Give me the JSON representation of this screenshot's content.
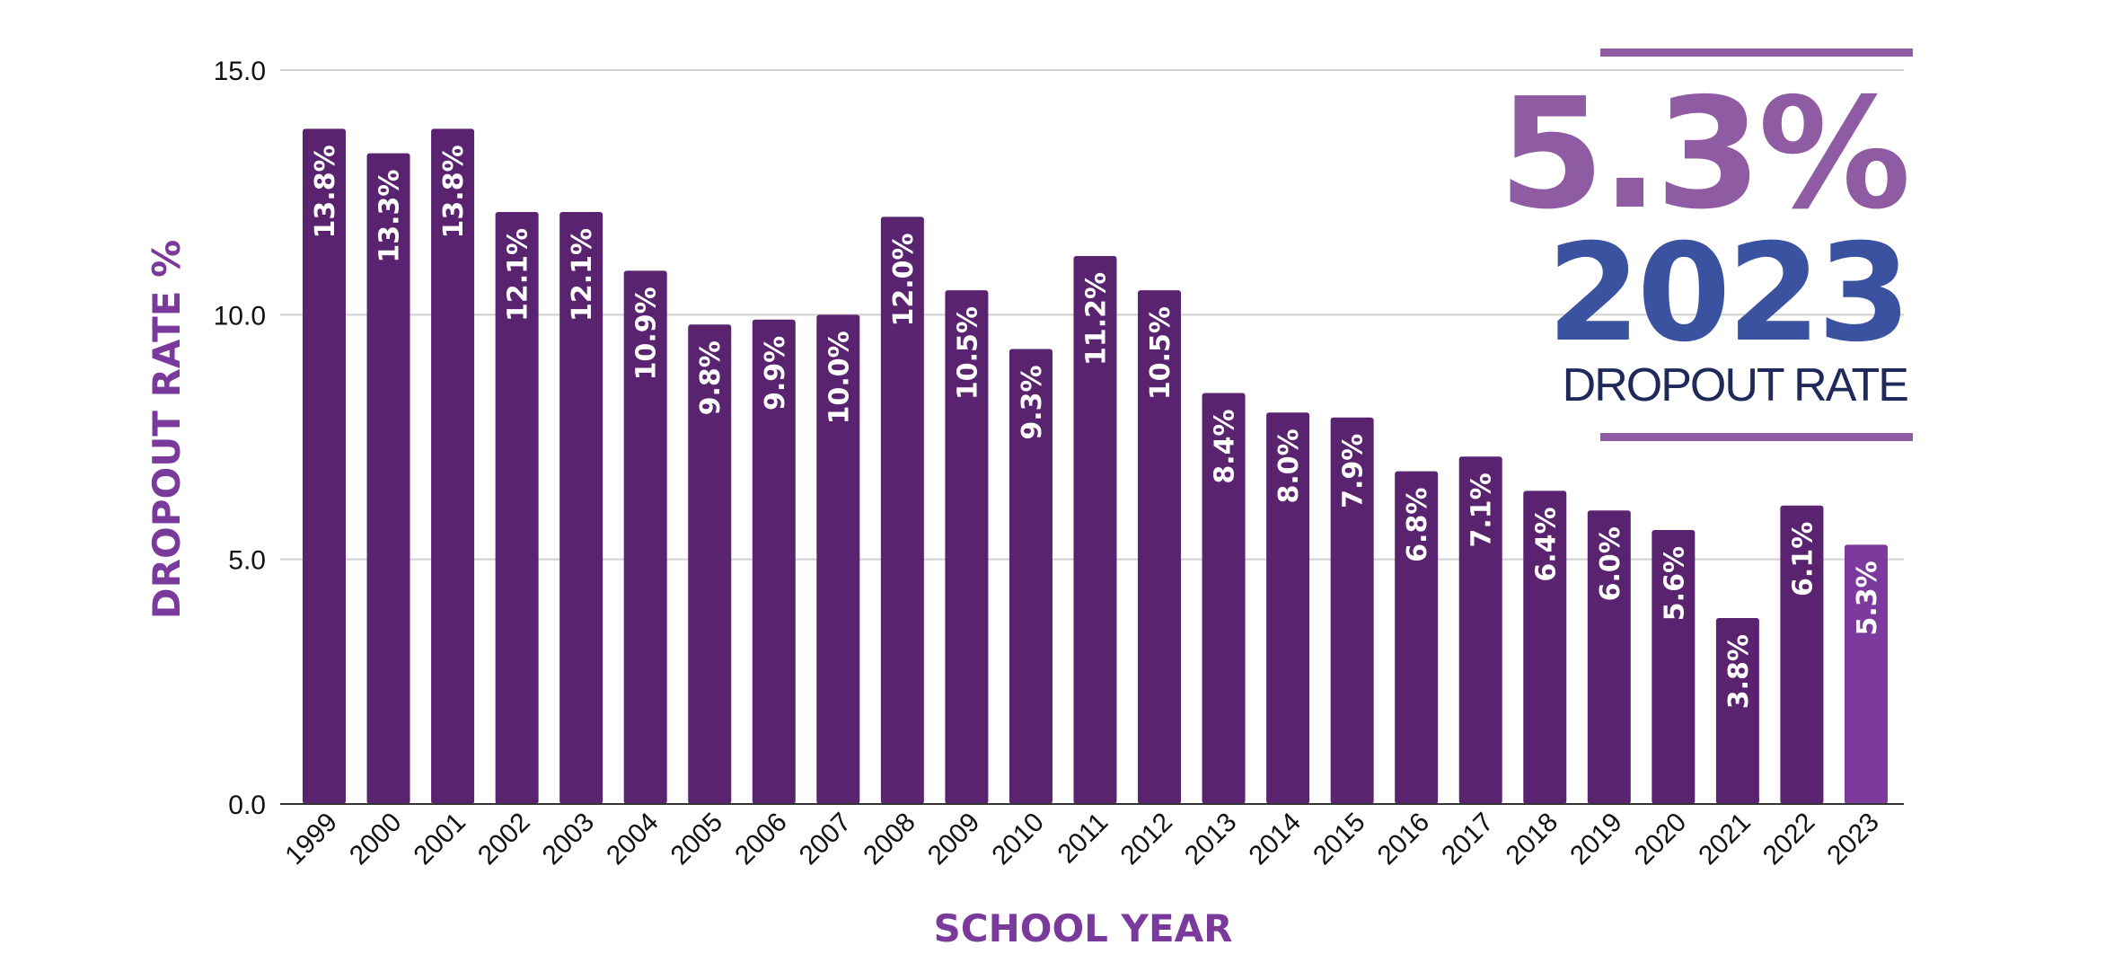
{
  "colors": {
    "bar": "#5a2370",
    "bar_highlight": "#7b3a9c",
    "axis_title": "#7a3a9c",
    "grid": "#cfcfcf",
    "axis": "#333333",
    "callout_value": "#8f5ba3",
    "callout_year": "#3a52a0",
    "callout_label": "#1f2a5a",
    "callout_rule": "#8f5ba3"
  },
  "callout": {
    "value": "5.3%",
    "year": "2023",
    "label": "DROPOUT RATE"
  },
  "chart_data": {
    "type": "bar",
    "title": "",
    "xlabel": "SCHOOL YEAR",
    "ylabel": "DROPOUT RATE %",
    "ylim": [
      0,
      15
    ],
    "yticks": [
      "0.0",
      "5.0",
      "10.0",
      "15.0"
    ],
    "grid": true,
    "categories": [
      "1999",
      "2000",
      "2001",
      "2002",
      "2003",
      "2004",
      "2005",
      "2006",
      "2007",
      "2008",
      "2009",
      "2010",
      "2011",
      "2012",
      "2013",
      "2014",
      "2015",
      "2016",
      "2017",
      "2018",
      "2019",
      "2020",
      "2021",
      "2022",
      "2023"
    ],
    "values": [
      13.8,
      13.3,
      13.8,
      12.1,
      12.1,
      10.9,
      9.8,
      9.9,
      10.0,
      12.0,
      10.5,
      9.3,
      11.2,
      10.5,
      8.4,
      8.0,
      7.9,
      6.8,
      7.1,
      6.4,
      6.0,
      5.6,
      3.8,
      6.1,
      5.3
    ],
    "data_labels": [
      "13.8%",
      "13.3%",
      "13.8%",
      "12.1%",
      "12.1%",
      "10.9%",
      "9.8%",
      "9.9%",
      "10.0%",
      "12.0%",
      "10.5%",
      "9.3%",
      "11.2%",
      "10.5%",
      "8.4%",
      "8.0%",
      "7.9%",
      "6.8%",
      "7.1%",
      "6.4%",
      "6.0%",
      "5.6%",
      "3.8%",
      "6.1%",
      "5.3%"
    ],
    "highlight_category": "2023"
  }
}
